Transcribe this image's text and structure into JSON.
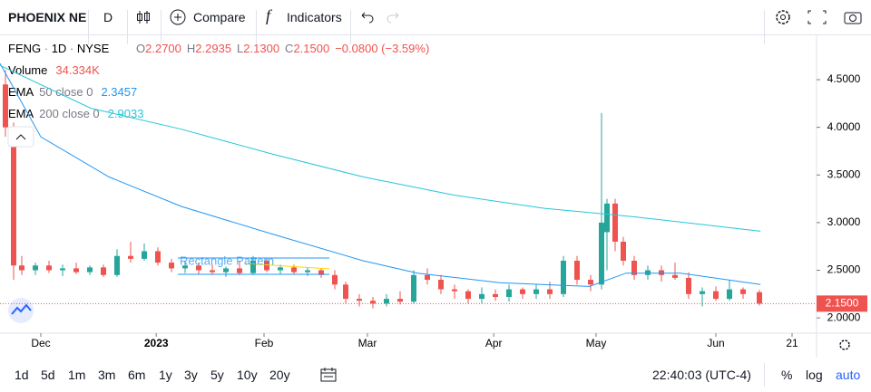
{
  "toolbar": {
    "symbol": "PHOENIX NE",
    "interval": "D",
    "compare": "Compare",
    "indicators": "Indicators"
  },
  "legend": {
    "ticker": "FENG",
    "resolution": "1D",
    "exchange": "NYSE",
    "ohlc": [
      {
        "key": "O",
        "text": "2.2700"
      },
      {
        "key": "H",
        "text": "2.2935"
      },
      {
        "key": "L",
        "text": "2.1300"
      },
      {
        "key": "C",
        "text": "2.1500"
      }
    ],
    "change": "−0.0800 (−3.59%)"
  },
  "indicators": [
    {
      "name": "Volume",
      "params": "",
      "value": "34.334K",
      "color": "#ef5350"
    },
    {
      "name": "EMA",
      "params": "50 close 0",
      "value": "2.3457",
      "color": "#2196f3"
    },
    {
      "name": "EMA",
      "params": "200 close 0",
      "value": "2.9033",
      "color": "#26c6da"
    }
  ],
  "chart_data": {
    "type": "candlestick",
    "x": [
      1,
      2.5,
      4,
      6.5,
      9,
      11.5,
      14,
      16.5,
      19,
      21.5,
      24,
      26.5,
      29,
      31.5,
      34,
      36.5,
      39,
      41.5,
      44,
      46.5,
      49,
      51.5,
      54,
      56.5,
      59,
      61.5,
      63.5,
      66,
      68.5,
      71,
      73.5,
      76,
      78.5,
      81,
      83.5,
      86,
      88.5,
      91,
      93.5,
      96,
      98.5,
      101,
      103.5,
      106,
      108.5,
      110.5,
      111.5,
      113,
      114.5,
      116.5,
      119,
      121.5,
      124,
      126.5,
      129,
      131.5,
      134,
      136.5,
      139.5
    ],
    "open": [
      4.45,
      4.0,
      2.55,
      2.5,
      2.55,
      2.5,
      2.52,
      2.48,
      2.53,
      2.45,
      2.65,
      2.62,
      2.7,
      2.58,
      2.52,
      2.55,
      2.5,
      2.48,
      2.52,
      2.47,
      2.6,
      2.5,
      2.53,
      2.48,
      2.5,
      2.45,
      2.35,
      2.2,
      2.18,
      2.15,
      2.2,
      2.17,
      2.45,
      2.4,
      2.3,
      2.28,
      2.2,
      2.25,
      2.22,
      2.3,
      2.25,
      2.3,
      2.25,
      2.6,
      2.4,
      2.35,
      2.9,
      3.2,
      2.8,
      2.6,
      2.45,
      2.5,
      2.45,
      2.42,
      2.25,
      2.28,
      2.2,
      2.3,
      2.27
    ],
    "high": [
      4.6,
      4.05,
      2.65,
      2.58,
      2.6,
      2.56,
      2.58,
      2.55,
      2.56,
      2.72,
      2.8,
      2.78,
      2.74,
      2.62,
      2.6,
      2.58,
      2.56,
      2.54,
      2.6,
      2.65,
      2.62,
      2.56,
      2.56,
      2.53,
      2.52,
      2.5,
      2.38,
      2.25,
      2.22,
      2.25,
      2.28,
      2.5,
      2.52,
      2.45,
      2.35,
      2.3,
      2.32,
      2.3,
      2.35,
      2.32,
      2.35,
      2.38,
      2.65,
      2.65,
      2.45,
      4.15,
      3.25,
      3.25,
      2.85,
      2.65,
      2.55,
      2.55,
      2.58,
      2.48,
      2.32,
      2.33,
      2.4,
      2.32,
      2.2935
    ],
    "low": [
      3.9,
      2.4,
      2.45,
      2.45,
      2.47,
      2.44,
      2.46,
      2.45,
      2.43,
      2.43,
      2.58,
      2.6,
      2.55,
      2.48,
      2.47,
      2.46,
      2.45,
      2.43,
      2.45,
      2.45,
      2.48,
      2.46,
      2.46,
      2.44,
      2.42,
      2.3,
      2.15,
      2.12,
      2.1,
      2.12,
      2.14,
      2.15,
      2.35,
      2.25,
      2.2,
      2.15,
      2.15,
      2.18,
      2.17,
      2.2,
      2.2,
      2.2,
      2.22,
      2.35,
      2.28,
      2.3,
      2.5,
      2.7,
      2.55,
      2.4,
      2.4,
      2.38,
      2.4,
      2.2,
      2.12,
      2.18,
      2.18,
      2.2,
      2.13
    ],
    "close": [
      4.0,
      2.55,
      2.5,
      2.55,
      2.5,
      2.52,
      2.48,
      2.53,
      2.45,
      2.65,
      2.62,
      2.7,
      2.58,
      2.52,
      2.55,
      2.5,
      2.48,
      2.52,
      2.47,
      2.6,
      2.5,
      2.53,
      2.48,
      2.5,
      2.45,
      2.35,
      2.2,
      2.18,
      2.15,
      2.2,
      2.17,
      2.45,
      2.4,
      2.3,
      2.28,
      2.2,
      2.25,
      2.22,
      2.3,
      2.25,
      2.3,
      2.25,
      2.6,
      2.4,
      2.35,
      3.0,
      3.2,
      2.8,
      2.6,
      2.45,
      2.5,
      2.45,
      2.42,
      2.25,
      2.28,
      2.2,
      2.3,
      2.25,
      2.15
    ],
    "up_color": "#26a69a",
    "down_color": "#ef5350",
    "series": [
      {
        "name": "EMA 50",
        "color": "#2196f3",
        "x": [
          0,
          7.5,
          20,
          33.3,
          50,
          66.7,
          76.7,
          91.7,
          108.3,
          115,
          125,
          139.7
        ],
        "values": [
          4.67,
          3.9,
          3.48,
          3.17,
          2.88,
          2.6,
          2.47,
          2.37,
          2.33,
          2.47,
          2.47,
          2.35
        ]
      },
      {
        "name": "EMA 200",
        "color": "#26c6da",
        "x": [
          0,
          16.7,
          33.3,
          50,
          66.7,
          83.3,
          100,
          116.7,
          139.7
        ],
        "values": [
          4.65,
          4.2,
          3.98,
          3.72,
          3.48,
          3.29,
          3.15,
          3.06,
          2.91
        ]
      }
    ],
    "xlim": [
      0,
      150
    ],
    "ylim": [
      1.84,
      4.975
    ],
    "xticks": [
      {
        "value": 7.5,
        "label": "Dec"
      },
      {
        "value": 28.7,
        "label": "2023"
      },
      {
        "value": 48.5,
        "label": "Feb"
      },
      {
        "value": 67.5,
        "label": "Mar"
      },
      {
        "value": 90.7,
        "label": "Apr"
      },
      {
        "value": 109.5,
        "label": "May"
      },
      {
        "value": 131.5,
        "label": "Jun"
      },
      {
        "value": 145.5,
        "label": "21"
      }
    ],
    "yticks": [
      {
        "value": 2.0,
        "label": "2.0000"
      },
      {
        "value": 2.5,
        "label": "2.5000"
      },
      {
        "value": 3.0,
        "label": "3.0000"
      },
      {
        "value": 3.5,
        "label": "3.5000"
      },
      {
        "value": 4.0,
        "label": "4.0000"
      },
      {
        "value": 4.5,
        "label": "4.5000"
      }
    ],
    "annotation": "Rectangle Pattern",
    "last_price": {
      "value": 2.15,
      "label": "2.1500"
    }
  },
  "bottom_bar": {
    "ranges": [
      "1d",
      "5d",
      "1m",
      "3m",
      "6m",
      "1y",
      "3y",
      "5y",
      "10y",
      "20y"
    ],
    "time": "22:40:03 (UTC-4)",
    "percent": "%",
    "log": "log",
    "auto": "auto"
  }
}
